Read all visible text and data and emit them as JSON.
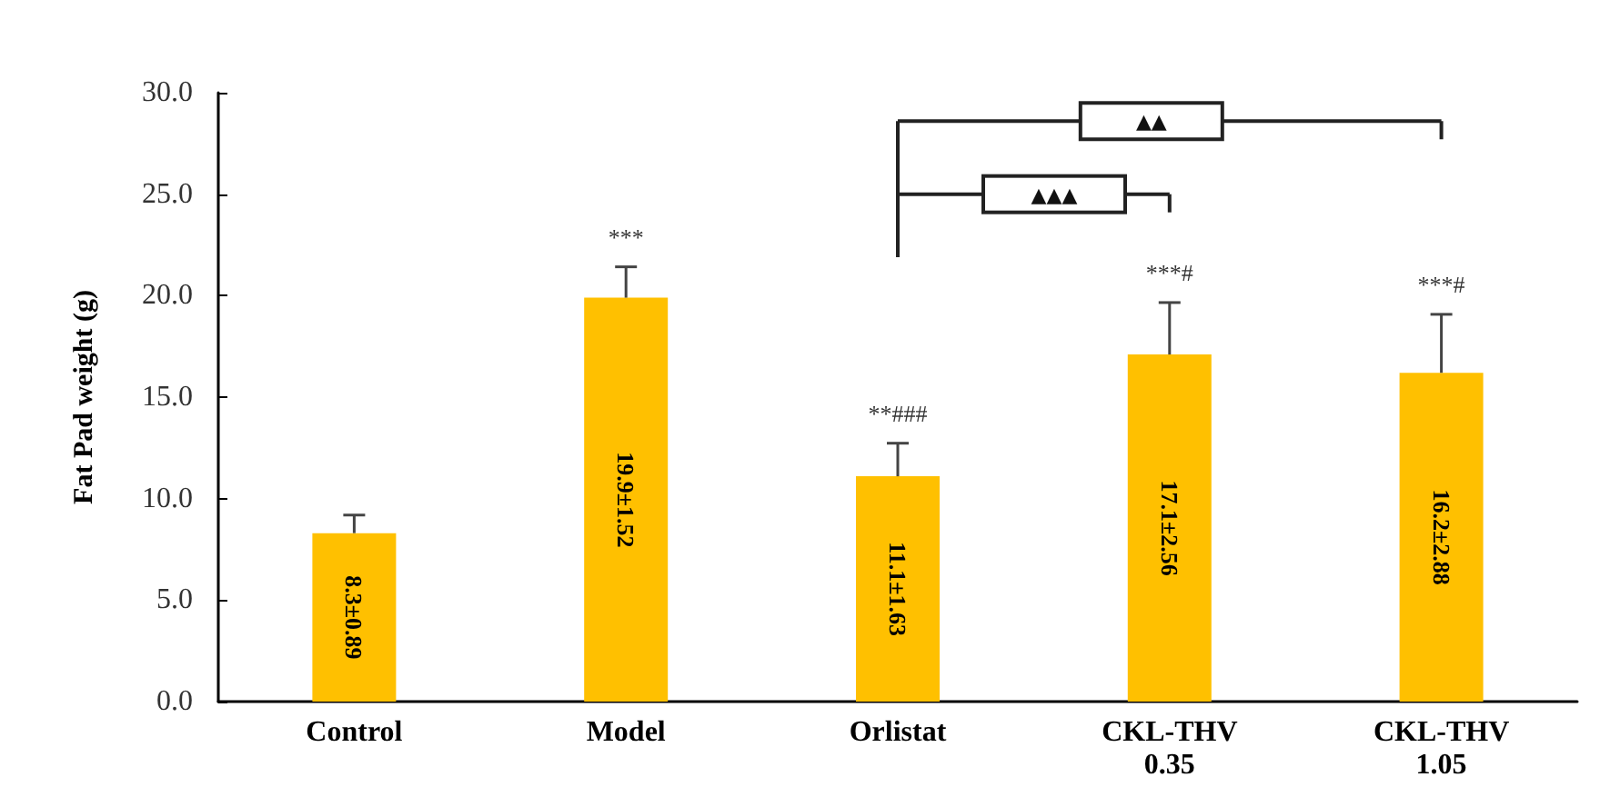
{
  "chart_data": {
    "type": "bar",
    "ylabel": "Fat Pad weight (g)",
    "categories": [
      "Control",
      "Model",
      "Orlistat",
      "CKL-THV\n0.35",
      "CKL-THV\n1.05"
    ],
    "values": [
      8.3,
      19.9,
      11.1,
      17.1,
      16.2
    ],
    "color": "#ffc000",
    "errors": [
      [
        8.3,
        9.19
      ],
      [
        19.9,
        21.42
      ],
      [
        11.1,
        12.73
      ],
      [
        17.1,
        19.66
      ],
      [
        16.2,
        19.08
      ]
    ],
    "value_labels": [
      "8.3±0.89",
      "19.9±1.52",
      "11.1±1.63",
      "17.1±2.56",
      "16.2±2.88"
    ],
    "ylim": [
      0,
      30
    ],
    "yticks": [
      {
        "value": 0,
        "label": "0.0"
      },
      {
        "value": 5,
        "label": "5.0"
      },
      {
        "value": 10,
        "label": "10.0"
      },
      {
        "value": 15,
        "label": "15.0"
      },
      {
        "value": 20,
        "label": "20.0"
      },
      {
        "value": 25,
        "label": "25.0"
      },
      {
        "value": 30,
        "label": "30.0"
      }
    ],
    "annotations": [
      "***",
      "**###",
      "***#",
      "***#",
      "▲▲▲",
      "▲▲"
    ],
    "grid": false
  }
}
